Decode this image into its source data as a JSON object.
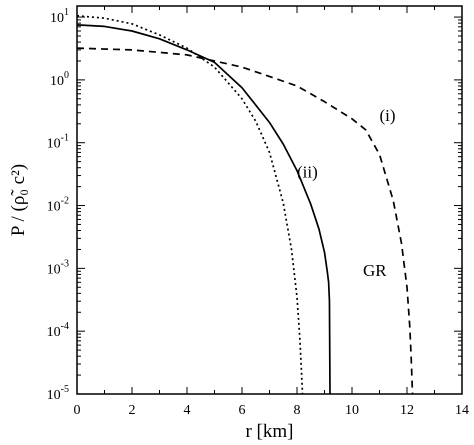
{
  "chart_data": {
    "type": "line",
    "xlabel": "r [km]",
    "ylabel": "P / (ρ̃₀ c²)",
    "xlim": [
      0,
      14
    ],
    "ylim": [
      1e-05,
      15
    ],
    "yscale": "log",
    "xticks": [
      0,
      2,
      4,
      6,
      8,
      10,
      12,
      14
    ],
    "xtick_labels": [
      "0",
      "2",
      "4",
      "6",
      "8",
      "10",
      "12",
      "14"
    ],
    "yticks": [
      1e-05,
      0.0001,
      0.001,
      0.01,
      0.1,
      1,
      10
    ],
    "ytick_labels": [
      {
        "base": "10",
        "exp": "-5"
      },
      {
        "base": "10",
        "exp": "-4"
      },
      {
        "base": "10",
        "exp": "-3"
      },
      {
        "base": "10",
        "exp": "-2"
      },
      {
        "base": "10",
        "exp": "-1"
      },
      {
        "base": "10",
        "exp": "0"
      },
      {
        "base": "10",
        "exp": "1"
      }
    ],
    "grid": false,
    "series": [
      {
        "name": "GR",
        "style": "solid",
        "x": [
          0,
          1,
          2,
          3,
          4,
          5,
          6,
          7,
          7.5,
          8,
          8.5,
          8.8,
          9.0,
          9.1,
          9.15,
          9.18,
          9.2
        ],
        "y": [
          7.5,
          7.1,
          6.0,
          4.5,
          3.0,
          1.9,
          0.75,
          0.21,
          0.095,
          0.036,
          0.0105,
          0.0042,
          0.0018,
          0.0009,
          0.0006,
          0.0003,
          1e-05
        ]
      },
      {
        "name": "(i)",
        "style": "dashed",
        "x": [
          0,
          2,
          4,
          6,
          8,
          9,
          10,
          10.5,
          11,
          11.5,
          11.8,
          12.0,
          12.1,
          12.15,
          12.2
        ],
        "y": [
          3.2,
          3.0,
          2.5,
          1.6,
          0.8,
          0.45,
          0.24,
          0.16,
          0.065,
          0.012,
          0.0025,
          0.0005,
          0.00012,
          4e-05,
          1e-05
        ]
      },
      {
        "name": "(ii)",
        "style": "dotted",
        "x": [
          0,
          1,
          2,
          3,
          4,
          5,
          6,
          6.5,
          7,
          7.5,
          7.8,
          8.0,
          8.1,
          8.15,
          8.2
        ],
        "y": [
          10.5,
          9.6,
          7.8,
          5.2,
          3.2,
          1.6,
          0.5,
          0.22,
          0.07,
          0.011,
          0.002,
          0.00035,
          8e-05,
          3e-05,
          1e-05
        ]
      }
    ],
    "annotations": [
      {
        "text": "GR",
        "x": 10.4,
        "y": 0.00075
      },
      {
        "text": "(i)",
        "x": 11.0,
        "y": 0.22
      },
      {
        "text": "(ii)",
        "x": 8.0,
        "y": 0.028
      }
    ]
  }
}
